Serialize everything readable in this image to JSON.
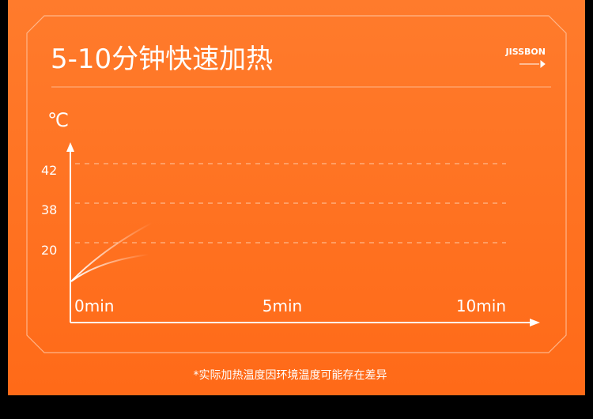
{
  "header": {
    "title": "5-10分钟快速加热",
    "brand": "JISSBON"
  },
  "chart": {
    "unit": "℃",
    "y_labels": [
      "42",
      "38",
      "20"
    ],
    "x_labels": [
      "0min",
      "5min",
      "10min"
    ]
  },
  "footnote": "*实际加热温度因环境温度可能存在差异"
}
